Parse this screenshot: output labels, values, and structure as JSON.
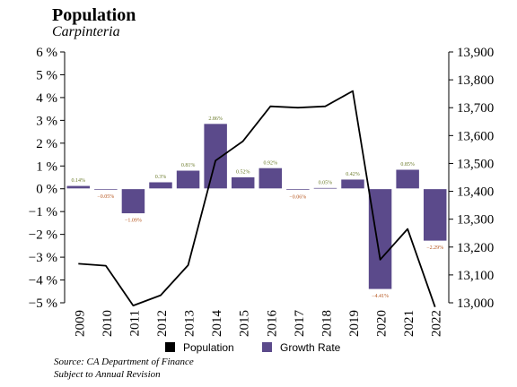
{
  "header": {
    "title": "Population",
    "subtitle": "Carpinteria"
  },
  "footer": {
    "source": "Source: CA Department of Finance",
    "note": "Subject to Annual Revision"
  },
  "chart_data": {
    "type": "bar",
    "categories": [
      "2009",
      "2010",
      "2011",
      "2012",
      "2013",
      "2014",
      "2015",
      "2016",
      "2017",
      "2018",
      "2019",
      "2020",
      "2021",
      "2022"
    ],
    "series": [
      {
        "name": "Growth Rate",
        "type": "bar",
        "axis": "left",
        "color": "#5b4a8b",
        "values": [
          0.14,
          -0.05,
          -1.09,
          0.3,
          0.81,
          2.86,
          0.52,
          0.92,
          -0.06,
          0.05,
          0.42,
          -4.41,
          0.85,
          -2.29
        ],
        "labels": [
          "0.14%",
          "−0.05%",
          "−1.09%",
          "0.3%",
          "0.81%",
          "2.86%",
          "0.52%",
          "0.92%",
          "−0.06%",
          "0.05%",
          "0.42%",
          "−4.41%",
          "0.85%",
          "−2.29%"
        ]
      },
      {
        "name": "Population",
        "type": "line",
        "axis": "right",
        "color": "#000000",
        "values": [
          13140,
          13133,
          12990,
          13027,
          13135,
          13510,
          13580,
          13705,
          13700,
          13705,
          13760,
          13155,
          13265,
          12985
        ]
      }
    ],
    "y_left": {
      "min": -5,
      "max": 6,
      "ticks": [
        "−5 %",
        "−4 %",
        "−3 %",
        "−2 %",
        "−1 %",
        "0 %",
        "1 %",
        "2 %",
        "3 %",
        "4 %",
        "5 %",
        "6 %"
      ]
    },
    "y_right": {
      "min": 13000,
      "max": 13900,
      "ticks": [
        "13,000",
        "13,100",
        "13,200",
        "13,300",
        "13,400",
        "13,500",
        "13,600",
        "13,700",
        "13,800",
        "13,900"
      ]
    },
    "legend": {
      "placement": "bottom",
      "items": [
        {
          "label": "Population",
          "color": "#000000"
        },
        {
          "label": "Growth Rate",
          "color": "#5b4a8b"
        }
      ]
    },
    "label_colors": {
      "positive": "#6b7a2a",
      "negative": "#b5541c"
    }
  }
}
